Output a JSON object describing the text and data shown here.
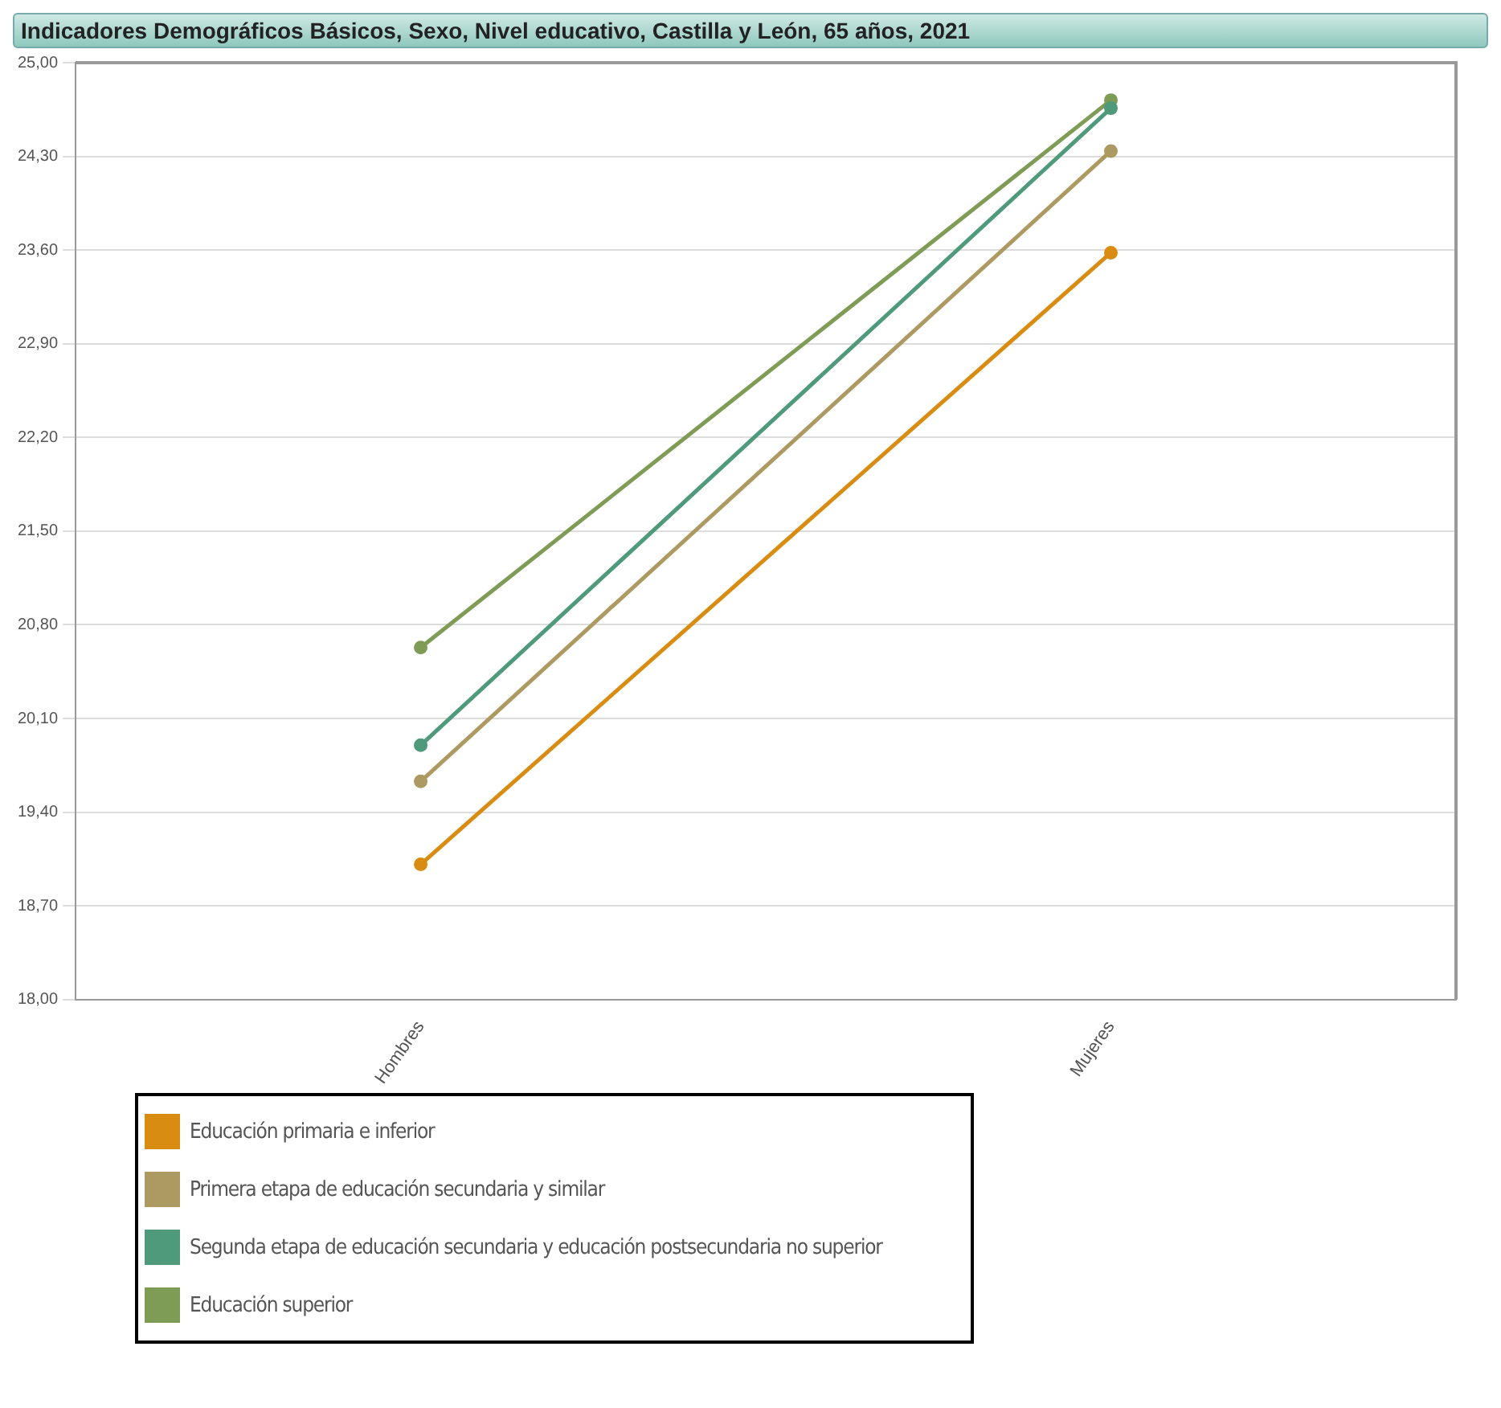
{
  "chart_data": {
    "type": "line",
    "title": "Indicadores Demográficos Básicos, Sexo, Nivel educativo, Castilla y León, 65 años, 2021",
    "categories": [
      "Hombres",
      "Mujeres"
    ],
    "series": [
      {
        "name": "Educación primaria e inferior",
        "color": "#d98c12",
        "values": [
          19.01,
          23.58
        ]
      },
      {
        "name": "Primera etapa de educación secundaria y similar",
        "color": "#ad9a62",
        "values": [
          19.63,
          24.34
        ]
      },
      {
        "name": "Segunda etapa de educación secundaria y educación postsecundaria no superior",
        "color": "#4e9a7a",
        "values": [
          19.9,
          24.66
        ]
      },
      {
        "name": "Educación superior",
        "color": "#7f9c56",
        "values": [
          20.63,
          24.72
        ]
      }
    ],
    "ylim": [
      18,
      25
    ],
    "yticks": [
      {
        "value": 18,
        "label": "18,00"
      },
      {
        "value": 18.7,
        "label": "18,70"
      },
      {
        "value": 19.4,
        "label": "19,40"
      },
      {
        "value": 20.1,
        "label": "20,10"
      },
      {
        "value": 20.8,
        "label": "20,80"
      },
      {
        "value": 21.5,
        "label": "21,50"
      },
      {
        "value": 22.2,
        "label": "22,20"
      },
      {
        "value": 22.9,
        "label": "22,90"
      },
      {
        "value": 23.6,
        "label": "23,60"
      },
      {
        "value": 24.3,
        "label": "24,30"
      },
      {
        "value": 25,
        "label": "25,00"
      }
    ],
    "grid": "y",
    "legend": "bottom",
    "marker": "circle",
    "line_style": "solid"
  }
}
